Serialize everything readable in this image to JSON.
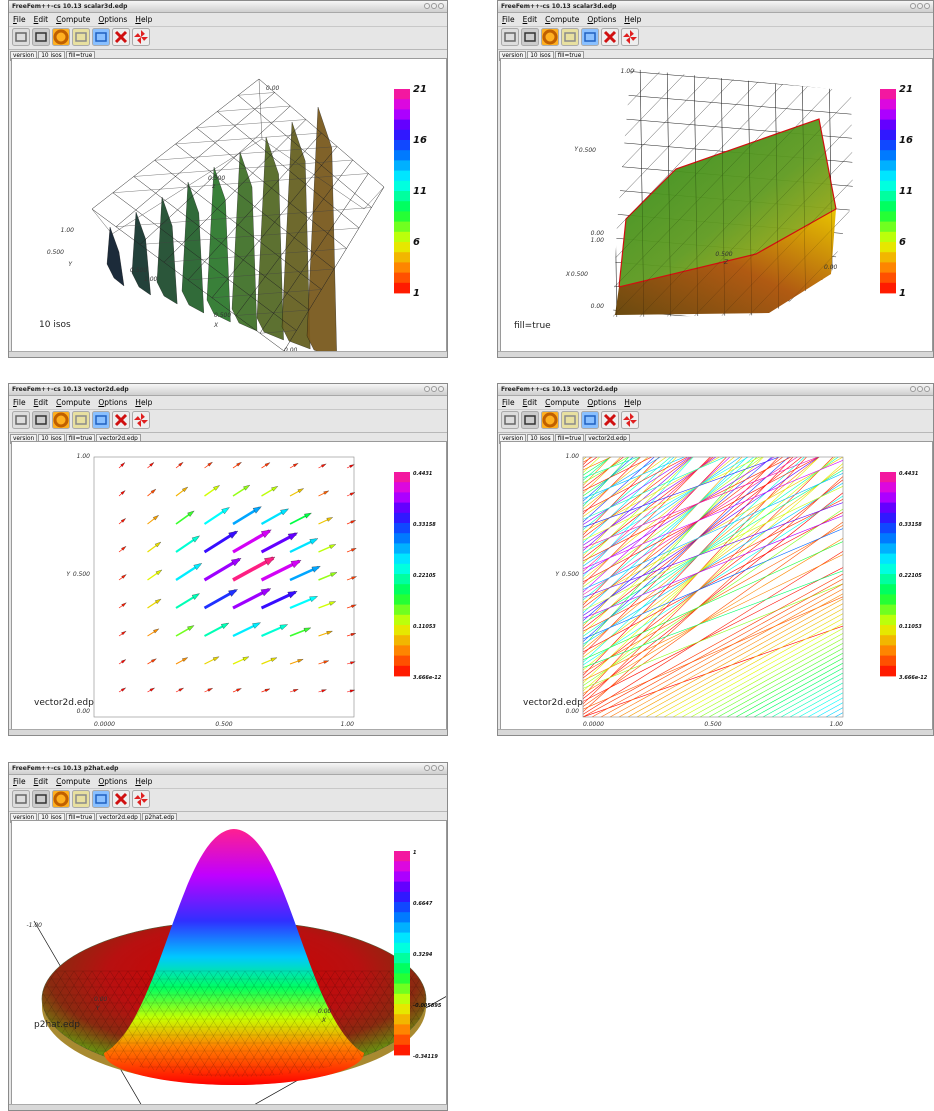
{
  "windows": [
    {
      "title": "FreeFem++-cs 10.13 scalar3d.edp",
      "menu": [
        "File",
        "Edit",
        "Compute",
        "Options",
        "Help"
      ],
      "tabs": [
        "version",
        "10 isos",
        "fill=true"
      ],
      "axis_labels": [
        "0.00",
        "0.500",
        "z",
        "1.00",
        "0.500",
        "Y",
        "0.500",
        "1.00",
        "0.500",
        "X",
        "0.00"
      ],
      "colorbar_labels": [
        "21",
        "16",
        "11",
        "6",
        "1"
      ],
      "caption": "10 isos"
    },
    {
      "title": "FreeFem++-cs 10.13 scalar3d.edp",
      "menu": [
        "File",
        "Edit",
        "Compute",
        "Options",
        "Help"
      ],
      "tabs": [
        "version",
        "10 isos",
        "fill=true"
      ],
      "axis_labels": [
        "1.00",
        "Y",
        "0.500",
        "0.00",
        "1.00",
        "0.500",
        "Z",
        "0.00",
        "X",
        "0.500",
        "0.00"
      ],
      "colorbar_labels": [
        "21",
        "16",
        "11",
        "6",
        "1"
      ],
      "caption": "fill=true"
    },
    {
      "title": "FreeFem++-cs 10.13 vector2d.edp",
      "menu": [
        "File",
        "Edit",
        "Compute",
        "Options",
        "Help"
      ],
      "tabs": [
        "version",
        "10 isos",
        "fill=true",
        "vector2d.edp"
      ],
      "axis_labels": [
        "1.00",
        "Y",
        "0.500",
        "0.00",
        "0.0000",
        "0.500",
        "1.00"
      ],
      "colorbar_labels": [
        "0.4431",
        "0.33158",
        "0.22105",
        "0.11053",
        "3.666e-12"
      ],
      "caption": "vector2d.edp"
    },
    {
      "title": "FreeFem++-cs 10.13 vector2d.edp",
      "menu": [
        "File",
        "Edit",
        "Compute",
        "Options",
        "Help"
      ],
      "tabs": [
        "version",
        "10 isos",
        "fill=true",
        "vector2d.edp"
      ],
      "axis_labels": [
        "1.00",
        "Y",
        "0.500",
        "0.00",
        "0.0000",
        "0.500",
        "1.00"
      ],
      "colorbar_labels": [
        "0.4431",
        "0.33158",
        "0.22105",
        "0.11053",
        "3.666e-12"
      ],
      "caption": "vector2d.edp"
    },
    {
      "title": "FreeFem++-cs 10.13 p2hat.edp",
      "menu": [
        "File",
        "Edit",
        "Compute",
        "Options",
        "Help"
      ],
      "tabs": [
        "version",
        "10 isos",
        "fill=true",
        "vector2d.edp",
        "p2hat.edp"
      ],
      "axis_labels": [
        "-1.00",
        "0.00",
        "Y",
        "0.00",
        "X"
      ],
      "colorbar_labels": [
        "1",
        "0.6647",
        "0.3294",
        "-0.005895",
        "-0.34119"
      ],
      "caption": "p2hat.edp"
    }
  ]
}
